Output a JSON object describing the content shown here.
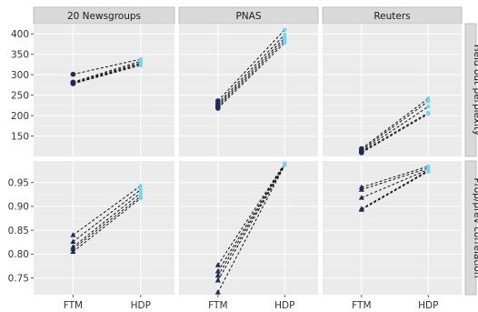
{
  "chart_data": {
    "type": "scatter",
    "facet_columns": [
      "20 Newsgroups",
      "PNAS",
      "Reuters"
    ],
    "facet_rows": [
      "Held out perplexity",
      "Prop/prev correlation"
    ],
    "x_categories": [
      "FTM",
      "HDP"
    ],
    "grid": true,
    "colors": {
      "FTM_perplexity": "#1f2a5a",
      "FTM_correlation": "#1f2a5a",
      "HDP": "#6fd8f0",
      "line": "#111111",
      "panel_background": "#ebebeb",
      "strip_background": "#d9d9d9"
    },
    "rows": [
      {
        "label": "Held out perplexity",
        "marker_ftm": "circle",
        "ylim": [
          100,
          425
        ],
        "yticks": [
          150,
          200,
          250,
          300,
          350,
          400
        ],
        "ytick_labels": [
          "150",
          "200",
          "250",
          "300",
          "350",
          "400"
        ],
        "panels": [
          {
            "facet": "20 Newsgroups",
            "pairs": [
              [
                301,
                338
              ],
              [
                282,
                333
              ],
              [
                280,
                329
              ],
              [
                279,
                326
              ],
              [
                278,
                323
              ]
            ]
          },
          {
            "facet": "PNAS",
            "pairs": [
              [
                236,
                410
              ],
              [
                230,
                398
              ],
              [
                226,
                390
              ],
              [
                222,
                384
              ],
              [
                218,
                378
              ]
            ]
          },
          {
            "facet": "Reuters",
            "pairs": [
              [
                119,
                242
              ],
              [
                116,
                235
              ],
              [
                113,
                222
              ],
              [
                111,
                207
              ],
              [
                109,
                204
              ]
            ]
          }
        ]
      },
      {
        "label": "Prop/prev correlation",
        "marker_ftm": "triangle",
        "ylim": [
          0.715,
          0.995
        ],
        "yticks": [
          0.75,
          0.8,
          0.85,
          0.9,
          0.95
        ],
        "ytick_labels": [
          "0.75",
          "0.80",
          "0.85",
          "0.90",
          "0.95"
        ],
        "panels": [
          {
            "facet": "20 Newsgroups",
            "pairs": [
              [
                0.84,
                0.943
              ],
              [
                0.826,
                0.935
              ],
              [
                0.815,
                0.928
              ],
              [
                0.811,
                0.921
              ],
              [
                0.805,
                0.917
              ]
            ]
          },
          {
            "facet": "PNAS",
            "pairs": [
              [
                0.777,
                0.99
              ],
              [
                0.764,
                0.989
              ],
              [
                0.755,
                0.988
              ],
              [
                0.745,
                0.987
              ],
              [
                0.72,
                0.986
              ]
            ]
          },
          {
            "facet": "Reuters",
            "pairs": [
              [
                0.94,
                0.984
              ],
              [
                0.935,
                0.98
              ],
              [
                0.918,
                0.977
              ],
              [
                0.895,
                0.975
              ],
              [
                0.893,
                0.973
              ]
            ]
          }
        ]
      }
    ]
  }
}
